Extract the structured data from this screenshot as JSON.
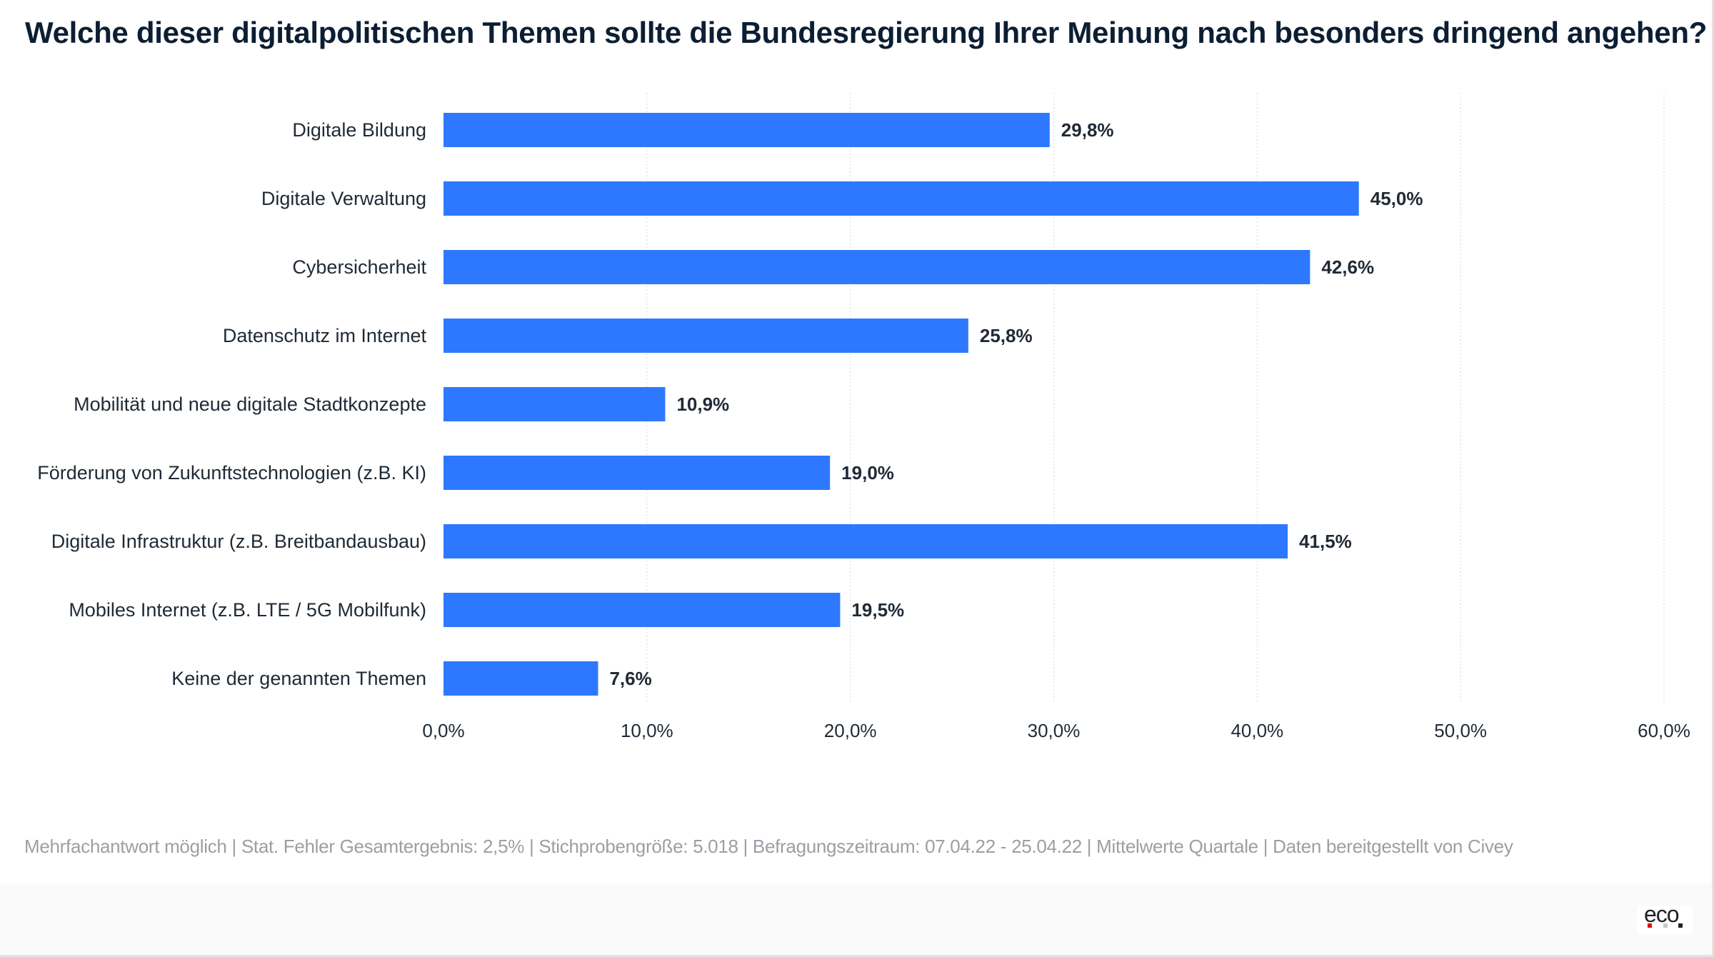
{
  "title": "Welche dieser digitalpolitischen Themen sollte die Bundesregierung Ihrer Meinung nach besonders dringend angehen?",
  "footer_note": "Mehrfachantwort möglich | Stat. Fehler Gesamtergebnis: 2,5% | Stichprobengröße: 5.018 | Befragungszeitraum: 07.04.22 - 25.04.22 | Mittelwerte Quartale | Daten bereitgestellt von Civey",
  "logo": {
    "text": "eco",
    "dot_colors": [
      "#e2001a",
      "#c8c8c8",
      "#222222"
    ]
  },
  "colors": {
    "bar": "#2e78ff",
    "grid": "#e4e4e4",
    "text": "#1f2a36"
  },
  "chart_data": {
    "type": "bar",
    "orientation": "horizontal",
    "categories": [
      "Digitale Bildung",
      "Digitale Verwaltung",
      "Cybersicherheit",
      "Datenschutz im Internet",
      "Mobilität und neue digitale Stadtkonzepte",
      "Förderung von Zukunftstechnologien (z.B. KI)",
      "Digitale Infrastruktur (z.B. Breitbandausbau)",
      "Mobiles Internet (z.B. LTE / 5G Mobilfunk)",
      "Keine der genannten Themen"
    ],
    "values": [
      29.8,
      45.0,
      42.6,
      25.8,
      10.9,
      19.0,
      41.5,
      19.5,
      7.6
    ],
    "data_labels": [
      "29,8%",
      "45,0%",
      "42,6%",
      "25,8%",
      "10,9%",
      "19,0%",
      "41,5%",
      "19,5%",
      "7,6%"
    ],
    "xlim": [
      0,
      60
    ],
    "x_ticks": [
      0,
      10,
      20,
      30,
      40,
      50,
      60
    ],
    "x_tick_labels": [
      "0,0%",
      "10,0%",
      "20,0%",
      "30,0%",
      "40,0%",
      "50,0%",
      "60,0%"
    ],
    "grid": "vertical dotted",
    "legend": "none"
  }
}
